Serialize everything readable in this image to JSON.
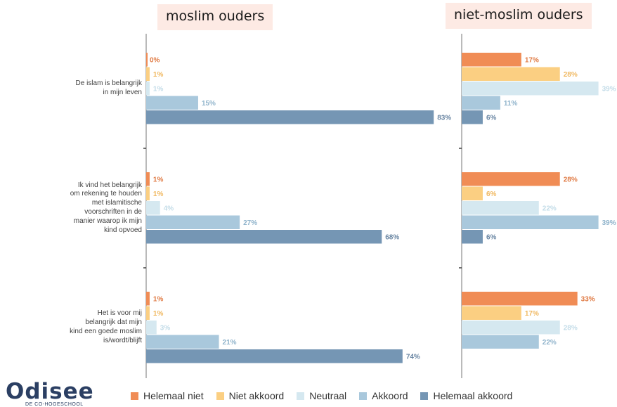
{
  "panels": {
    "left_title": "moslim ouders",
    "right_title": "niet-moslim ouders"
  },
  "categories": [
    {
      "label_lines": [
        "De islam is belangrijk",
        "in mijn leven"
      ]
    },
    {
      "label_lines": [
        "Ik vind het belangrijk",
        "om rekening te houden",
        "met islamitische",
        "voorschriften in de",
        "manier waarop ik mijn",
        "kind opvoed"
      ]
    },
    {
      "label_lines": [
        "Het is voor mij",
        "belangrijk dat mijn",
        "kind een goede moslim",
        "is/wordt/blijft"
      ]
    }
  ],
  "logo": {
    "name": "Odisee",
    "subtitle": "DE CO-HOGESCHOOL"
  },
  "chart_data": [
    {
      "type": "bar",
      "orientation": "horizontal",
      "title": "moslim ouders",
      "categories": [
        "De islam is belangrijk in mijn leven",
        "Ik vind het belangrijk om rekening te houden met islamitische voorschriften in de manier waarop ik mijn kind opvoed",
        "Het is voor mij belangrijk dat mijn kind een goede moslim is/wordt/blijft"
      ],
      "series": [
        {
          "name": "Helemaal niet",
          "color": "#f08c55",
          "values": [
            0,
            1,
            1
          ]
        },
        {
          "name": "Niet akkoord",
          "color": "#fbcf82",
          "values": [
            1,
            1,
            1
          ]
        },
        {
          "name": "Neutraal",
          "color": "#d5e8f0",
          "values": [
            1,
            4,
            3
          ]
        },
        {
          "name": "Akkoord",
          "color": "#a9c8dc",
          "values": [
            15,
            27,
            21
          ]
        },
        {
          "name": "Helemaal akkoord",
          "color": "#7596b4",
          "values": [
            83,
            68,
            74
          ]
        }
      ],
      "value_suffix": "%",
      "xlim": [
        0,
        100
      ],
      "legend": "bottom"
    },
    {
      "type": "bar",
      "orientation": "horizontal",
      "title": "niet-moslim ouders",
      "categories": [
        "De islam is belangrijk in mijn leven",
        "Ik vind het belangrijk om rekening te houden met islamitische voorschriften in de manier waarop ik mijn kind opvoed",
        "Het is voor mij belangrijk dat mijn kind een goede moslim is/wordt/blijft"
      ],
      "series": [
        {
          "name": "Helemaal niet",
          "color": "#f08c55",
          "values": [
            17,
            28,
            33
          ]
        },
        {
          "name": "Niet akkoord",
          "color": "#fbcf82",
          "values": [
            28,
            6,
            17
          ]
        },
        {
          "name": "Neutraal",
          "color": "#d5e8f0",
          "values": [
            39,
            22,
            28
          ]
        },
        {
          "name": "Akkoord",
          "color": "#a9c8dc",
          "values": [
            11,
            39,
            22
          ]
        },
        {
          "name": "Helemaal akkoord",
          "color": "#7596b4",
          "values": [
            6,
            6,
            null
          ]
        }
      ],
      "value_suffix": "%",
      "xlim": [
        0,
        40
      ],
      "legend": "bottom"
    }
  ],
  "label_colors": {
    "Helemaal niet": "#e07b45",
    "Niet akkoord": "#f0b860",
    "Neutraal": "#c3dce8",
    "Akkoord": "#8fb3cb",
    "Helemaal akkoord": "#6a86a3"
  }
}
